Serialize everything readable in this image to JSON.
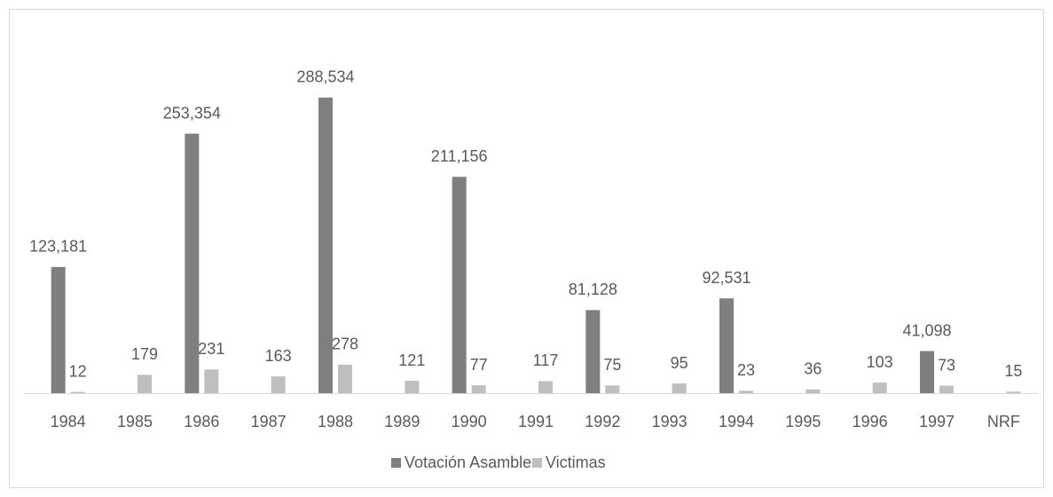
{
  "chart_data": {
    "type": "bar",
    "categories": [
      "1984",
      "1985",
      "1986",
      "1987",
      "1988",
      "1989",
      "1990",
      "1991",
      "1992",
      "1993",
      "1994",
      "1995",
      "1996",
      "1997",
      "NRF"
    ],
    "series": [
      {
        "name": "Votación Asamblea",
        "color": "#7f7f7f",
        "values": [
          123181,
          null,
          253354,
          null,
          288534,
          null,
          211156,
          null,
          81128,
          null,
          92531,
          null,
          null,
          41098,
          null
        ],
        "value_labels": [
          "123,181",
          null,
          "253,354",
          null,
          "288,534",
          null,
          "211,156",
          null,
          "81,128",
          null,
          "92,531",
          null,
          null,
          "41,098",
          null
        ]
      },
      {
        "name": "Victimas",
        "color": "#bfbfbf",
        "axis": "y2",
        "values": [
          12,
          179,
          231,
          163,
          278,
          121,
          77,
          117,
          75,
          95,
          23,
          36,
          103,
          73,
          15
        ]
      }
    ],
    "ylim": [
      0,
      350000
    ],
    "y2lim": [
      0,
      3500
    ],
    "legend": "bottom"
  }
}
